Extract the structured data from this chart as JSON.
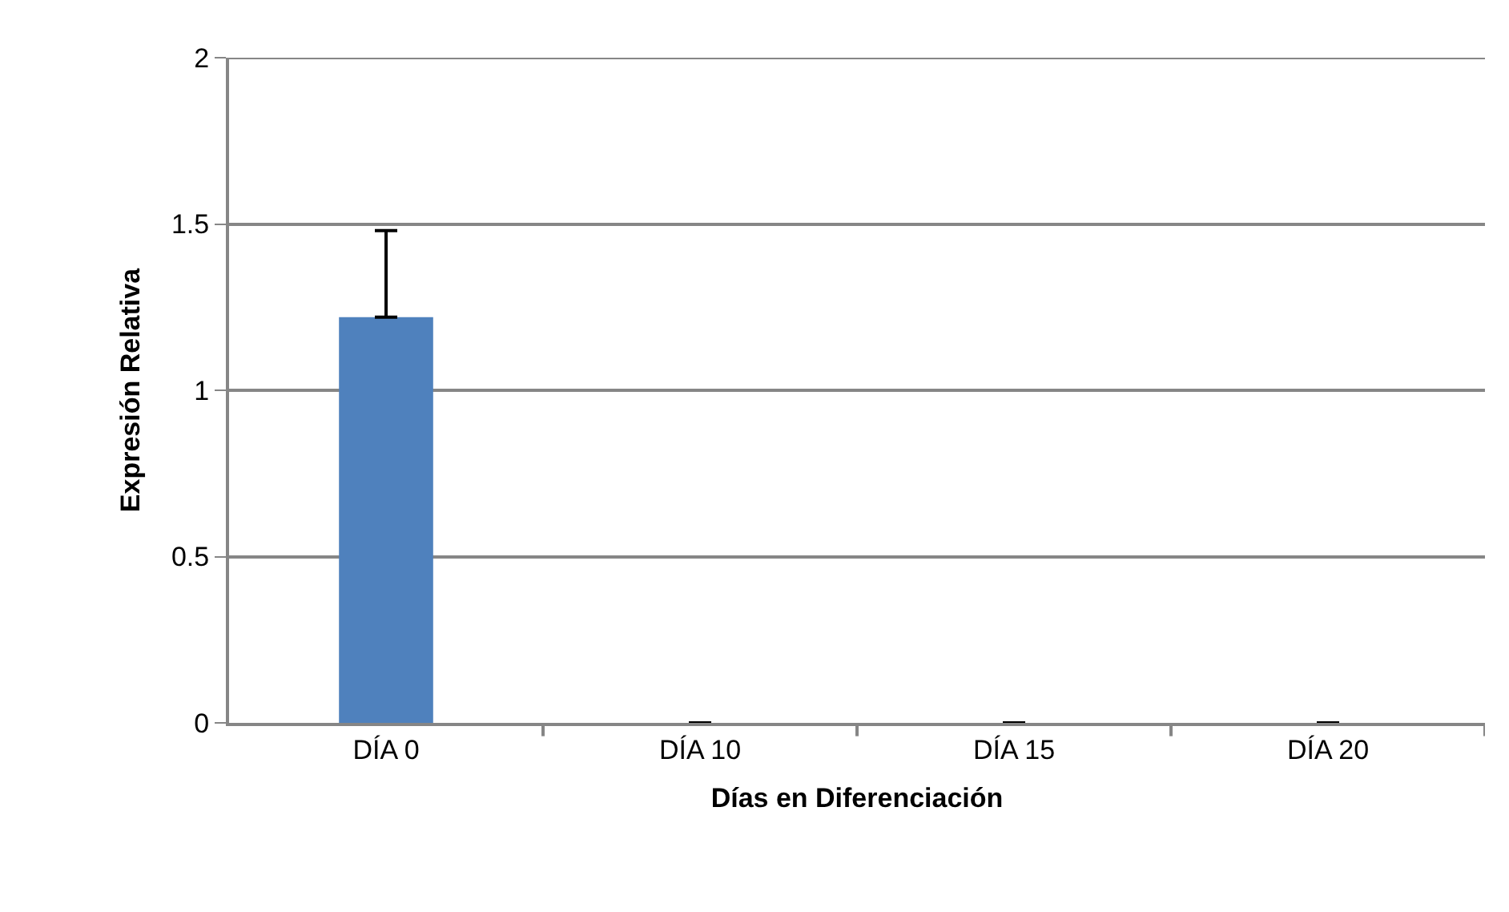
{
  "chart_data": {
    "type": "bar",
    "xlabel": "Días en Diferenciación",
    "ylabel": "Expresión Relativa",
    "categories": [
      "DÍA 0",
      "DÍA 10",
      "DÍA 15",
      "DÍA 20"
    ],
    "values": [
      1.22,
      0,
      0,
      0
    ],
    "errors": [
      0.26,
      null,
      null,
      null
    ],
    "color": "#4f81bd",
    "ylim": [
      0,
      2
    ],
    "yticks": [
      0,
      0.5,
      1,
      1.5,
      2
    ],
    "grid": "y"
  }
}
